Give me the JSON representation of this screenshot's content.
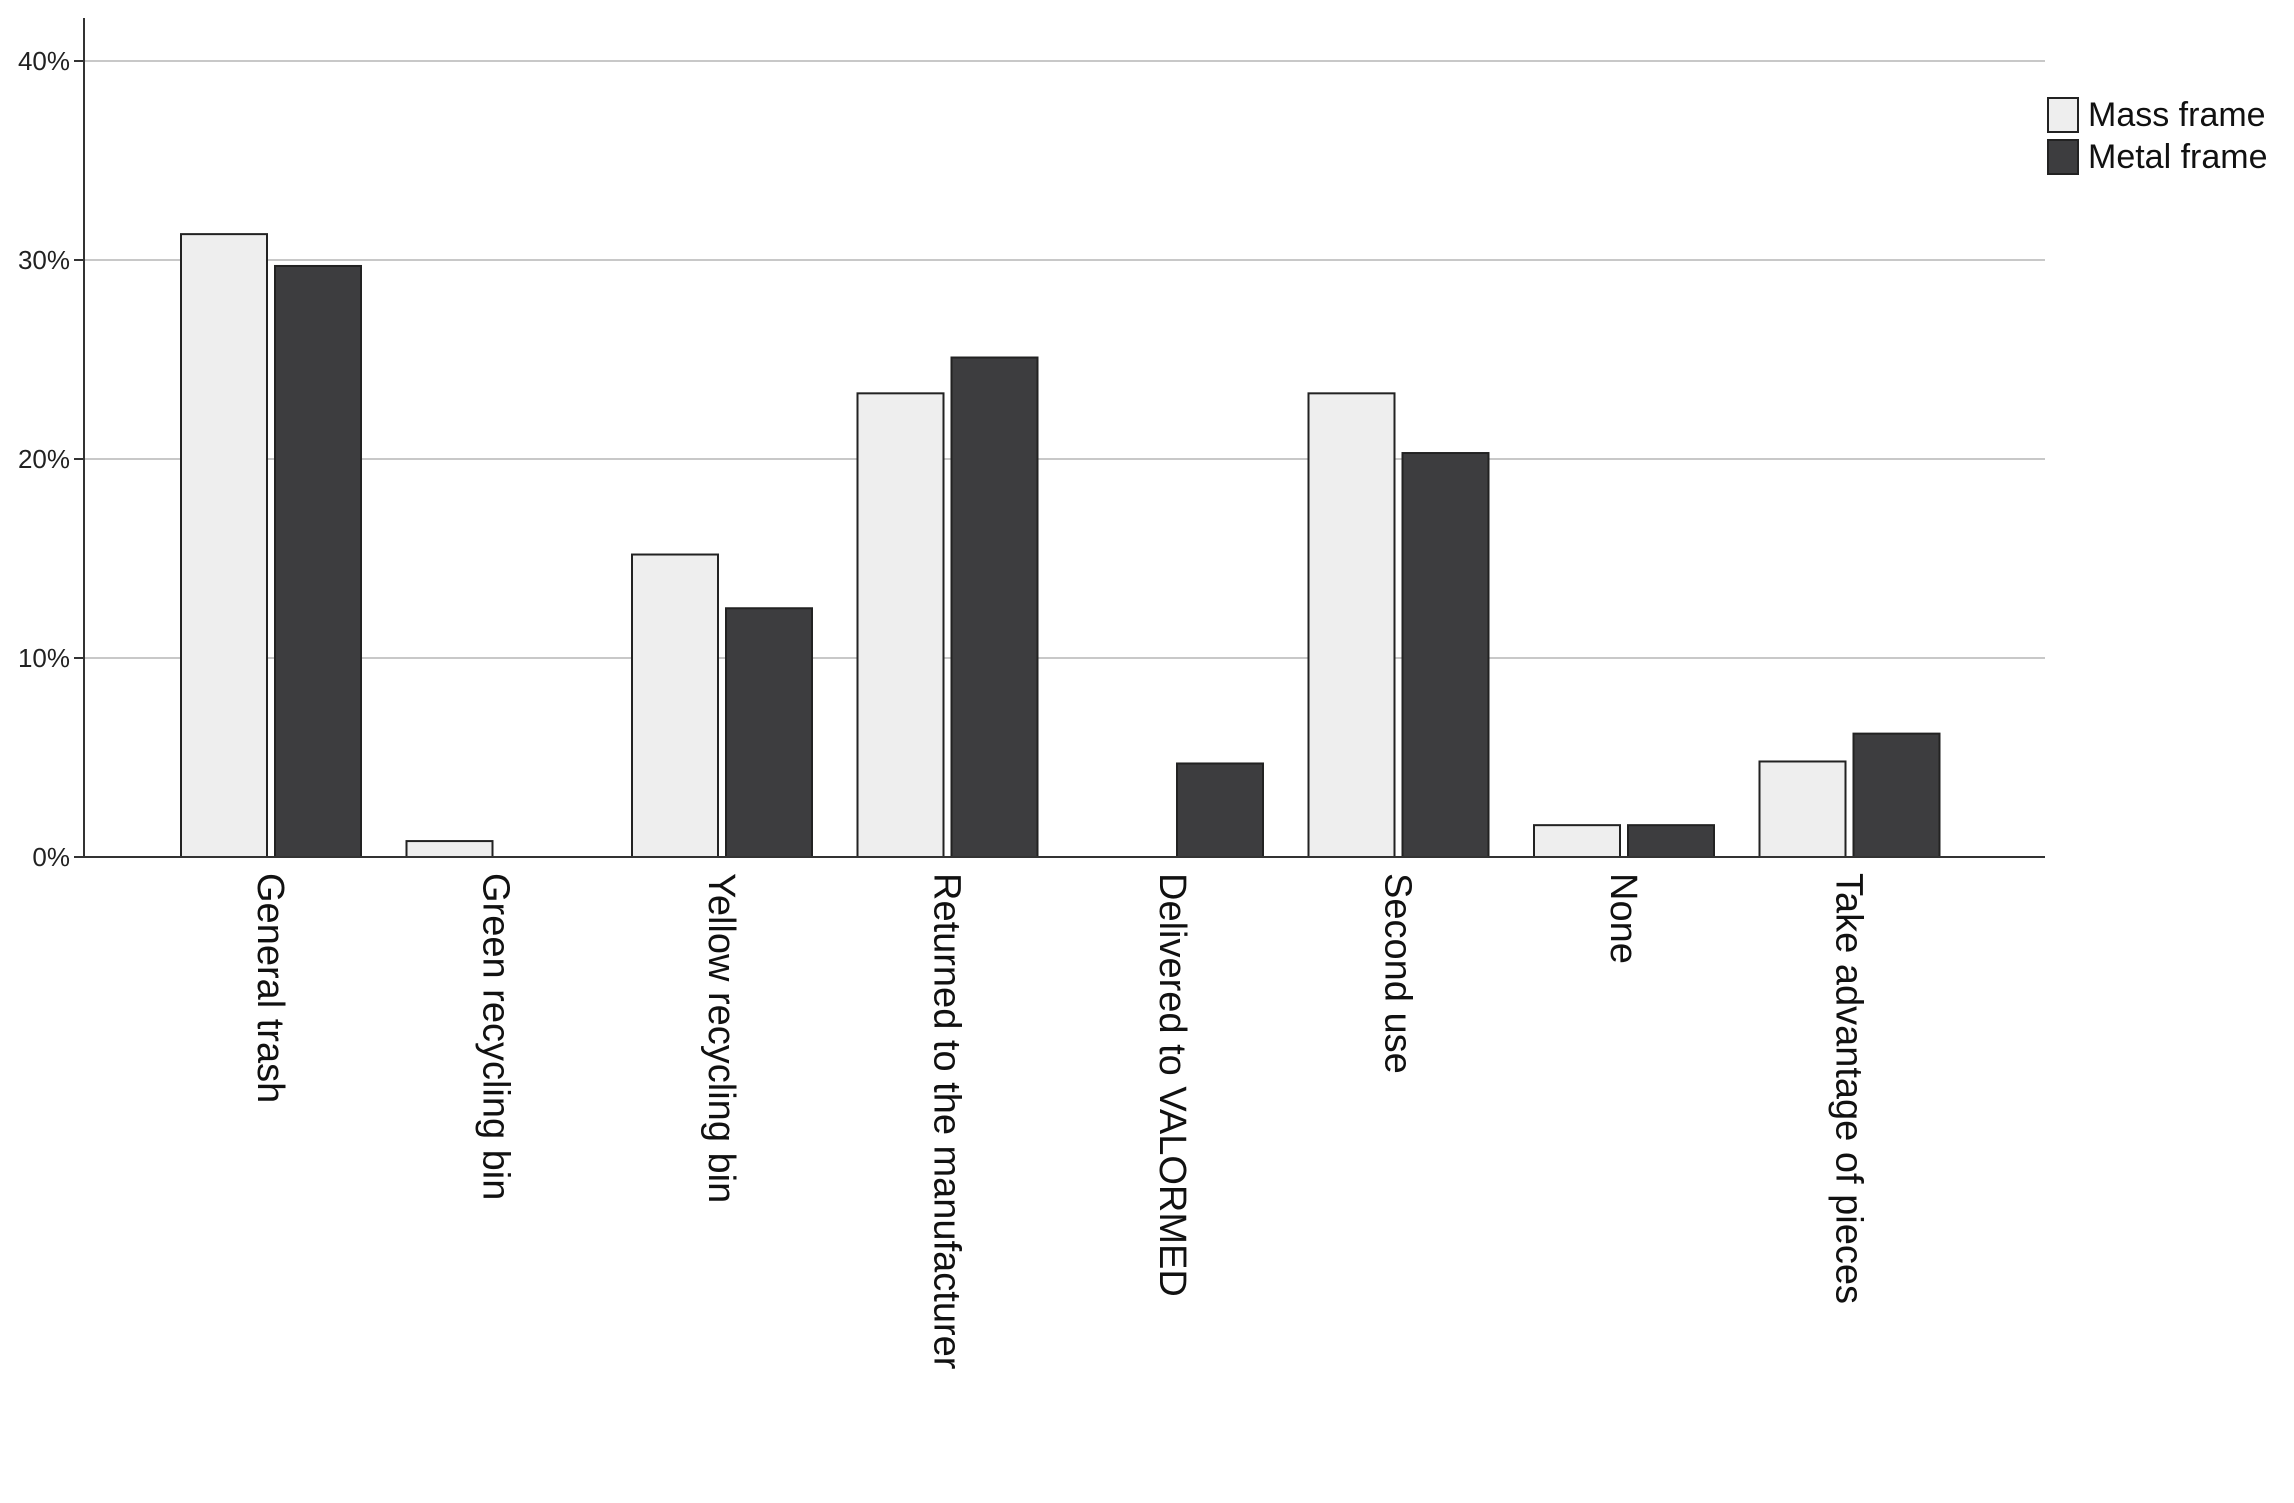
{
  "chart_data": {
    "type": "bar",
    "title": "",
    "xlabel": "",
    "ylabel": "",
    "ylim": [
      0,
      40
    ],
    "yticks": [
      "0%",
      "10%",
      "20%",
      "30%",
      "40%"
    ],
    "ytick_values": [
      0,
      10,
      20,
      30,
      40
    ],
    "grid": true,
    "legend_position": "top-right",
    "categories": [
      "General trash",
      "Green recycling bin",
      "Yellow recycling bin",
      "Returned to the manufacturer",
      "Delivered to VALORMED",
      "Second use",
      "None",
      "Take advantage of pieces"
    ],
    "series": [
      {
        "name": "Mass frame",
        "color": "#eeeeee",
        "values": [
          31.3,
          0.8,
          15.2,
          23.3,
          0,
          23.3,
          1.6,
          4.8
        ]
      },
      {
        "name": "Metal frame",
        "color": "#3d3d3f",
        "values": [
          29.7,
          0,
          12.5,
          25.1,
          4.7,
          20.3,
          1.6,
          6.2
        ]
      }
    ]
  }
}
